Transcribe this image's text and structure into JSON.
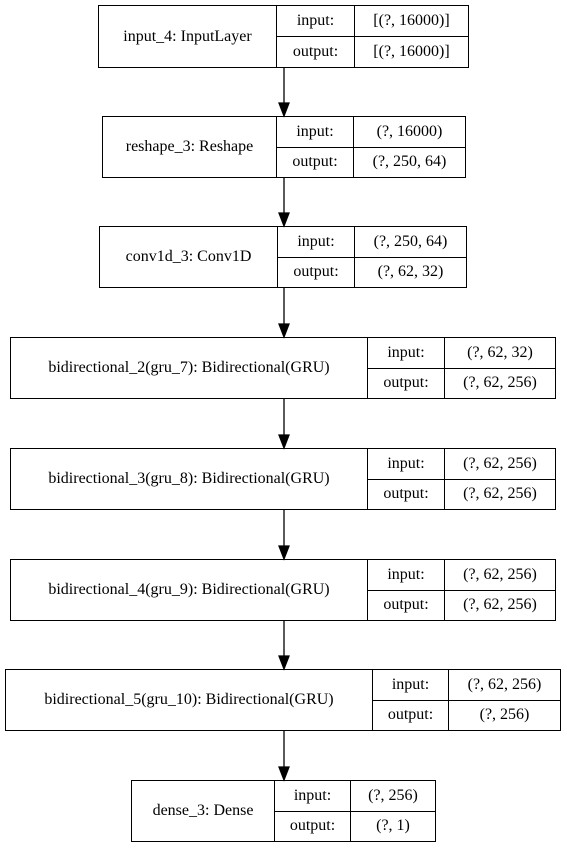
{
  "layers": [
    {
      "name": "input_4: InputLayer",
      "input_label": "input:",
      "output_label": "output:",
      "input": "[(?, 16000)]",
      "output": "[(?, 16000)]"
    },
    {
      "name": "reshape_3: Reshape",
      "input_label": "input:",
      "output_label": "output:",
      "input": "(?, 16000)",
      "output": "(?, 250, 64)"
    },
    {
      "name": "conv1d_3: Conv1D",
      "input_label": "input:",
      "output_label": "output:",
      "input": "(?, 250, 64)",
      "output": "(?, 62, 32)"
    },
    {
      "name": "bidirectional_2(gru_7): Bidirectional(GRU)",
      "input_label": "input:",
      "output_label": "output:",
      "input": "(?, 62, 32)",
      "output": "(?, 62, 256)"
    },
    {
      "name": "bidirectional_3(gru_8): Bidirectional(GRU)",
      "input_label": "input:",
      "output_label": "output:",
      "input": "(?, 62, 256)",
      "output": "(?, 62, 256)"
    },
    {
      "name": "bidirectional_4(gru_9): Bidirectional(GRU)",
      "input_label": "input:",
      "output_label": "output:",
      "input": "(?, 62, 256)",
      "output": "(?, 62, 256)"
    },
    {
      "name": "bidirectional_5(gru_10): Bidirectional(GRU)",
      "input_label": "input:",
      "output_label": "output:",
      "input": "(?, 62, 256)",
      "output": "(?, 256)"
    },
    {
      "name": "dense_3: Dense",
      "input_label": "input:",
      "output_label": "output:",
      "input": "(?, 256)",
      "output": "(?, 1)"
    }
  ]
}
